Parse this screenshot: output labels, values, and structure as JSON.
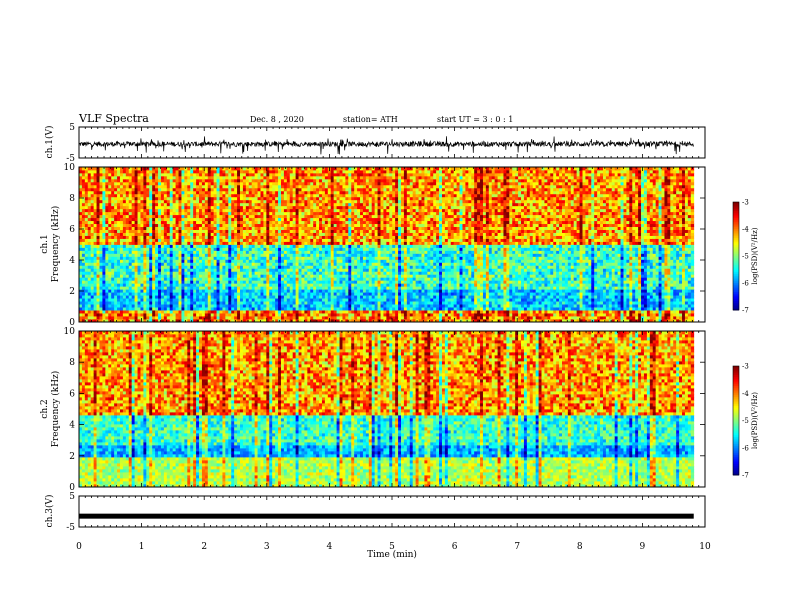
{
  "header": {
    "title": "VLF Spectra",
    "date": "Dec. 8 , 2020",
    "station": "station= ATH",
    "start": "start  UT  =   3  : 0   : 1"
  },
  "chart_data": [
    {
      "type": "line",
      "panel": "ch1-waveform",
      "ylabel": "ch.1(V)",
      "ylim": [
        -5,
        5
      ],
      "yticks": [
        "5",
        "-5"
      ],
      "xlim": [
        0,
        10
      ],
      "xlabel": "",
      "series_color": "#000000",
      "description_baseline": -0.5
    },
    {
      "type": "heatmap",
      "panel": "ch1-spectrogram",
      "ylabel_line1": "ch.1",
      "ylabel_line2": "Frequency  (kHz)",
      "ylim": [
        0,
        10
      ],
      "yticks": [
        "0",
        "2",
        "4",
        "6",
        "8",
        "10"
      ],
      "xlim": [
        0,
        10
      ],
      "colorbar": {
        "label": "log(PSD)(V²/Hz)",
        "range": [
          -7,
          -3
        ],
        "ticks": [
          "-3",
          "-4",
          "-5",
          "-6",
          "-7"
        ]
      }
    },
    {
      "type": "heatmap",
      "panel": "ch2-spectrogram",
      "ylabel_line1": "ch.2",
      "ylabel_line2": "Frequency  (kHz)",
      "ylim": [
        0,
        10
      ],
      "yticks": [
        "0",
        "2",
        "4",
        "6",
        "8",
        "10"
      ],
      "xlim": [
        0,
        10
      ],
      "colorbar": {
        "label": "log(PSD)(V²/Hz)",
        "range": [
          -7,
          -3
        ],
        "ticks": [
          "-3",
          "-4",
          "-5",
          "-6",
          "-7"
        ]
      }
    },
    {
      "type": "line",
      "panel": "ch3-waveform",
      "ylabel": "ch.3(V)",
      "ylim": [
        -5,
        5
      ],
      "yticks": [
        "5",
        "-5"
      ],
      "xlim": [
        0,
        10
      ],
      "xlabel": "Time  (min)",
      "xticks": [
        "0",
        "1",
        "2",
        "3",
        "4",
        "5",
        "6",
        "7",
        "8",
        "9",
        "10"
      ],
      "series_color": "#000000",
      "constant_value": -1.5
    }
  ]
}
